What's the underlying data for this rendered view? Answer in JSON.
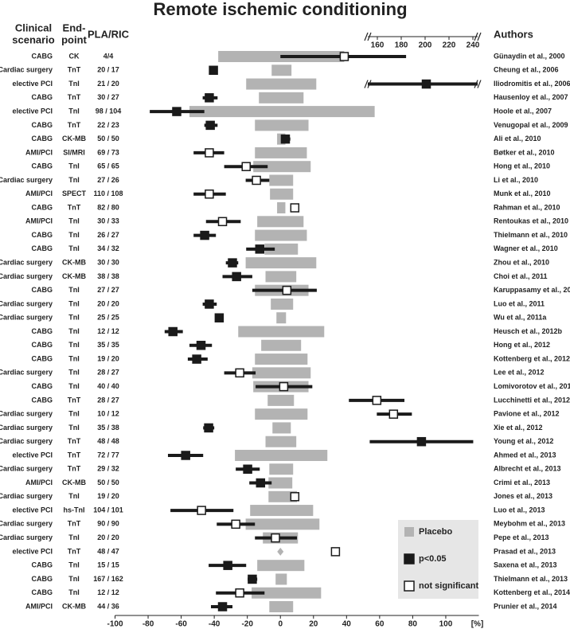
{
  "chart_data": {
    "type": "forest",
    "title": "Remote ischemic conditioning",
    "headers": {
      "scenario": [
        "Clinical",
        "scenario"
      ],
      "endpoint": [
        "End-",
        "point"
      ],
      "n": "PLA/RIC",
      "author": "Authors"
    },
    "xlim": [
      -100,
      120
    ],
    "xticks": [
      -100,
      -80,
      -60,
      -40,
      -20,
      0,
      20,
      40,
      60,
      80,
      100
    ],
    "x_unit": "[%]",
    "x2lim": [
      152,
      244
    ],
    "x2ticks": [
      160,
      180,
      200,
      220,
      240
    ],
    "legend_position": "bottom-right",
    "legend": [
      {
        "name": "Placebo",
        "color": "#b3b3b3"
      },
      {
        "name": "p<0.05",
        "color": "#1a1a1a"
      },
      {
        "name": "not significant",
        "color": "#ffffff"
      }
    ],
    "rows": [
      {
        "scenario": "CABG",
        "endpoint": "CK",
        "n": "4/4",
        "author": "Günaydin et al., 2000",
        "placebo": [
          -37.6,
          38.6
        ],
        "effect": 38.6,
        "ci": [
          0,
          76
        ],
        "significant": false
      },
      {
        "scenario": "Cardiac surgery",
        "endpoint": "TnT",
        "n": "20 / 17",
        "author": "Cheung et al., 2006",
        "placebo": [
          -5.3,
          6.7
        ],
        "effect": -40.5,
        "ci": [
          -43,
          -38
        ],
        "significant": true
      },
      {
        "scenario": "elective PCI",
        "endpoint": "TnI",
        "n": "21 / 20",
        "author": "Iliodromitis et al., 2006",
        "placebo": [
          -20.7,
          21.7
        ],
        "effect": 201,
        "ci": [
          152,
          244
        ],
        "significant": true,
        "axis": "x2"
      },
      {
        "scenario": "CABG",
        "endpoint": "TnT",
        "n": "30 / 27",
        "author": "Hausenloy et al., 2007",
        "placebo": [
          -13,
          14
        ],
        "effect": -43,
        "ci": [
          -47,
          -38
        ],
        "significant": true
      },
      {
        "scenario": "elective PCI",
        "endpoint": "TnI",
        "n": "98 / 104",
        "author": "Hoole et al., 2007",
        "placebo": [
          -55,
          57
        ],
        "effect": -62.7,
        "ci": [
          -79,
          -46
        ],
        "significant": true
      },
      {
        "scenario": "CABG",
        "endpoint": "TnT",
        "n": "22 / 23",
        "author": "Venugopal et al., 2009",
        "placebo": [
          -15.4,
          17
        ],
        "effect": -42.4,
        "ci": [
          -46,
          -38
        ],
        "significant": true
      },
      {
        "scenario": "CABG",
        "endpoint": "CK-MB",
        "n": "50 / 50",
        "author": "Ali et al., 2010",
        "placebo": [
          -2,
          3
        ],
        "effect": 3,
        "ci": [
          1,
          6
        ],
        "significant": true
      },
      {
        "scenario": "AMI/PCI",
        "endpoint": "SI/MRI",
        "n": "69 / 73",
        "author": "Bøtker et al., 2010",
        "placebo": [
          -15.4,
          16
        ],
        "effect": -43,
        "ci": [
          -52.5,
          -34
        ],
        "significant": false
      },
      {
        "scenario": "CABG",
        "endpoint": "TnI",
        "n": "65 / 65",
        "author": "Hong et al., 2010",
        "placebo": [
          -16.4,
          18.3
        ],
        "effect": -20.7,
        "ci": [
          -34,
          -7.7
        ],
        "significant": false
      },
      {
        "scenario": "Cardiac surgery",
        "endpoint": "TnI",
        "n": "27 / 26",
        "author": "Li et al., 2010",
        "placebo": [
          -6.7,
          7.7
        ],
        "effect": -14.5,
        "ci": [
          -21,
          -6.7
        ],
        "significant": false
      },
      {
        "scenario": "AMI/PCI",
        "endpoint": "SPECT",
        "n": "110 / 108",
        "author": "Munk et al., 2010",
        "placebo": [
          -6.3,
          7.7
        ],
        "effect": -43,
        "ci": [
          -52.5,
          -33
        ],
        "significant": false
      },
      {
        "scenario": "CABG",
        "endpoint": "TnT",
        "n": "82 / 80",
        "author": "Rahman et al., 2010",
        "placebo": [
          -2,
          3
        ],
        "effect": 8.7,
        "ci": null,
        "significant": false
      },
      {
        "scenario": "AMI/PCI",
        "endpoint": "TnI",
        "n": "30 / 33",
        "author": "Rentoukas et al., 2010",
        "placebo": [
          -14,
          14
        ],
        "effect": -35,
        "ci": [
          -45,
          -24
        ],
        "significant": false
      },
      {
        "scenario": "CABG",
        "endpoint": "TnI",
        "n": "26 / 27",
        "author": "Thielmann et al., 2010",
        "placebo": [
          -15.4,
          16
        ],
        "effect": -45.8,
        "ci": [
          -52.5,
          -39
        ],
        "significant": true
      },
      {
        "scenario": "CABG",
        "endpoint": "TnI",
        "n": "34 / 32",
        "author": "Wagner et al., 2010",
        "placebo": [
          -9.6,
          10.6
        ],
        "effect": -12.5,
        "ci": [
          -20.7,
          -3.4
        ],
        "significant": true
      },
      {
        "scenario": "Cardiac surgery",
        "endpoint": "CK-MB",
        "n": "30 / 30",
        "author": "Zhou et al., 2010",
        "placebo": [
          -21,
          21.7
        ],
        "effect": -29,
        "ci": [
          -33,
          -25.5
        ],
        "significant": true
      },
      {
        "scenario": "Cardiac surgery",
        "endpoint": "CK-MB",
        "n": "38 / 38",
        "author": "Choi et al., 2011",
        "placebo": [
          -9,
          9.6
        ],
        "effect": -26.5,
        "ci": [
          -35,
          -17
        ],
        "significant": true
      },
      {
        "scenario": "CABG",
        "endpoint": "TnI",
        "n": "27 / 27",
        "author": "Karuppasamy et al., 201",
        "placebo": [
          -15.4,
          17
        ],
        "effect": 3.9,
        "ci": [
          -17,
          22
        ],
        "significant": false
      },
      {
        "scenario": "Cardiac surgery",
        "endpoint": "TnI",
        "n": "20 / 20",
        "author": "Luo et al., 2011",
        "placebo": [
          -5.8,
          7.7
        ],
        "effect": -43,
        "ci": [
          -47,
          -38.5
        ],
        "significant": true
      },
      {
        "scenario": "Cardiac surgery",
        "endpoint": "TnI",
        "n": "25 / 25",
        "author": "Wu et al., 2011a",
        "placebo": [
          -2.4,
          3.4
        ],
        "effect": -37,
        "ci": [
          -39.5,
          -34.7
        ],
        "significant": true
      },
      {
        "scenario": "CABG",
        "endpoint": "TnI",
        "n": "12 / 12",
        "author": "Heusch et al., 2012b",
        "placebo": [
          -25.5,
          26.5
        ],
        "effect": -65,
        "ci": [
          -70,
          -59
        ],
        "significant": true
      },
      {
        "scenario": "CABG",
        "endpoint": "TnI",
        "n": "35 / 35",
        "author": "Hong et al., 2012",
        "placebo": [
          -11.6,
          12.5
        ],
        "effect": -48,
        "ci": [
          -55,
          -41.4
        ],
        "significant": true
      },
      {
        "scenario": "CABG",
        "endpoint": "TnI",
        "n": "19 / 20",
        "author": "Kottenberg et al., 2012",
        "placebo": [
          -15.4,
          16.4
        ],
        "effect": -50.6,
        "ci": [
          -56,
          -44
        ],
        "significant": true
      },
      {
        "scenario": "Cardiac surgery",
        "endpoint": "TnI",
        "n": "28 / 27",
        "author": "Lee et al., 2012",
        "placebo": [
          -17,
          18.3
        ],
        "effect": -24.6,
        "ci": [
          -34,
          -15
        ],
        "significant": false
      },
      {
        "scenario": "CABG",
        "endpoint": "TnI",
        "n": "40 / 40",
        "author": "Lomivorotov et al., 2012",
        "placebo": [
          -16.4,
          17
        ],
        "effect": 2,
        "ci": [
          -15,
          19.3
        ],
        "significant": false
      },
      {
        "scenario": "CABG",
        "endpoint": "TnT",
        "n": "28 / 27",
        "author": "Lucchinetti et al., 2012",
        "placebo": [
          -7.7,
          8.2
        ],
        "effect": 58.3,
        "ci": [
          41.4,
          75
        ],
        "significant": false
      },
      {
        "scenario": "Cardiac surgery",
        "endpoint": "TnI",
        "n": "10 / 12",
        "author": "Pavione et al., 2012",
        "placebo": [
          -15.4,
          16.4
        ],
        "effect": 68.4,
        "ci": [
          58.3,
          79.5
        ],
        "significant": false
      },
      {
        "scenario": "Cardiac surgery",
        "endpoint": "TnI",
        "n": "35 / 38",
        "author": "Xie et al., 2012",
        "placebo": [
          -4.8,
          6.3
        ],
        "effect": -43.4,
        "ci": [
          -46.7,
          -40
        ],
        "significant": true
      },
      {
        "scenario": "Cardiac surgery",
        "endpoint": "TnT",
        "n": "48 / 48",
        "author": "Young et al., 2012",
        "placebo": [
          -9,
          9.6
        ],
        "effect": 85.3,
        "ci": [
          54,
          116.6
        ],
        "significant": true
      },
      {
        "scenario": "elective PCI",
        "endpoint": "TnT",
        "n": "72 / 77",
        "author": "Ahmed et al., 2013",
        "placebo": [
          -27.5,
          28.4
        ],
        "effect": -57.3,
        "ci": [
          -68,
          -46.7
        ],
        "significant": true
      },
      {
        "scenario": "Cardiac surgery",
        "endpoint": "TnT",
        "n": "29 / 32",
        "author": "Albrecht et al., 2013",
        "placebo": [
          -6.7,
          7.7
        ],
        "effect": -19.8,
        "ci": [
          -27,
          -12.5
        ],
        "significant": true
      },
      {
        "scenario": "AMI/PCI",
        "endpoint": "CK-MB",
        "n": "50 / 50",
        "author": "Crimi et al., 2013",
        "placebo": [
          -7.2,
          7.2
        ],
        "effect": -12,
        "ci": [
          -18.8,
          -5.3
        ],
        "significant": true
      },
      {
        "scenario": "Cardiac surgery",
        "endpoint": "TnI",
        "n": "19 / 20",
        "author": "Jones et al., 2013",
        "placebo": [
          -7.2,
          10
        ],
        "effect": 8.7,
        "ci": [
          6.7,
          11
        ],
        "significant": false
      },
      {
        "scenario": "elective PCI",
        "endpoint": "hs-TnI",
        "n": "104 / 101",
        "author": "Luo et al., 2013",
        "placebo": [
          -18.3,
          19.8
        ],
        "effect": -47.7,
        "ci": [
          -66.5,
          -28.4
        ],
        "significant": false
      },
      {
        "scenario": "Cardiac surgery",
        "endpoint": "TnT",
        "n": "90 / 90",
        "author": "Meybohm et al., 2013",
        "placebo": [
          -21,
          23.6
        ],
        "effect": -27,
        "ci": [
          -38.5,
          -15.4
        ],
        "significant": false
      },
      {
        "scenario": "Cardiac surgery",
        "endpoint": "TnI",
        "n": "20 / 20",
        "author": "Pepe et al., 2013",
        "placebo": [
          -10.6,
          10.6
        ],
        "effect": -3,
        "ci": [
          -15.4,
          10
        ],
        "significant": false
      },
      {
        "scenario": "elective PCI",
        "endpoint": "TnT",
        "n": "48 / 47",
        "author": "Prasad et al., 2013",
        "placebo": [
          0,
          0
        ],
        "effect": 33.3,
        "ci": null,
        "significant": false
      },
      {
        "scenario": "CABG",
        "endpoint": "TnI",
        "n": "15 / 15",
        "author": "Saxena et al., 2013",
        "placebo": [
          -14,
          14.5
        ],
        "effect": -31.8,
        "ci": [
          -43.4,
          -20.7
        ],
        "significant": true
      },
      {
        "scenario": "CABG",
        "endpoint": "TnI",
        "n": "167 / 162",
        "author": "Thielmann et al., 2013",
        "placebo": [
          -2.9,
          3.9
        ],
        "effect": -17,
        "ci": [
          -19.8,
          -14
        ],
        "significant": true
      },
      {
        "scenario": "CABG",
        "endpoint": "TnI",
        "n": "12 / 12",
        "author": "Kottenberg et al., 2014a",
        "placebo": [
          -17.4,
          24.6
        ],
        "effect": -24.6,
        "ci": [
          -39,
          -9.6
        ],
        "significant": false
      },
      {
        "scenario": "AMI/PCI",
        "endpoint": "CK-MB",
        "n": "44 / 36",
        "author": "Prunier et al., 2014",
        "placebo": [
          -6.7,
          7.7
        ],
        "effect": -35,
        "ci": [
          -42,
          -29
        ],
        "significant": true
      }
    ]
  }
}
